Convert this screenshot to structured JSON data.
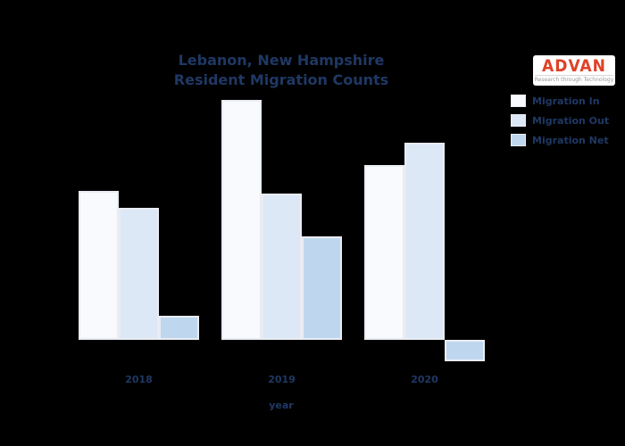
{
  "header": {
    "title_line1": "Lebanon, New Hampshire",
    "title_line2": "Resident Migration Counts",
    "logo": {
      "name": "ADVAN",
      "tagline": "Research through Technology",
      "name_color": "#df4226"
    }
  },
  "colors": {
    "background": "#000000",
    "text": "#1f3864",
    "bar_edge": "#e9ecf2",
    "migration_in": "#f8fafd",
    "migration_out": "#dde8f7",
    "migration_net": "#bed7ef"
  },
  "chart_data": {
    "type": "bar",
    "title": "Lebanon, New Hampshire Resident Migration Counts",
    "xlabel": "year",
    "ylabel": "",
    "categories": [
      "2018",
      "2019",
      "2020"
    ],
    "series": [
      {
        "name": "Migration In",
        "color": "#f8fafd",
        "values": [
          62,
          100,
          73
        ]
      },
      {
        "name": "Migration Out",
        "color": "#dde8f7",
        "values": [
          55,
          61,
          82
        ]
      },
      {
        "name": "Migration Net",
        "color": "#bed7ef",
        "values": [
          10,
          43,
          -9
        ]
      }
    ],
    "value_note": "y-axis has no visible ticks or gridlines; values are relative units estimated from bar heights, normalized so the tallest bar (Migration In, 2019) = 100",
    "ylim": [
      -15,
      105
    ],
    "grid": false,
    "y_axis_visible": false,
    "legend_position": "upper right"
  }
}
